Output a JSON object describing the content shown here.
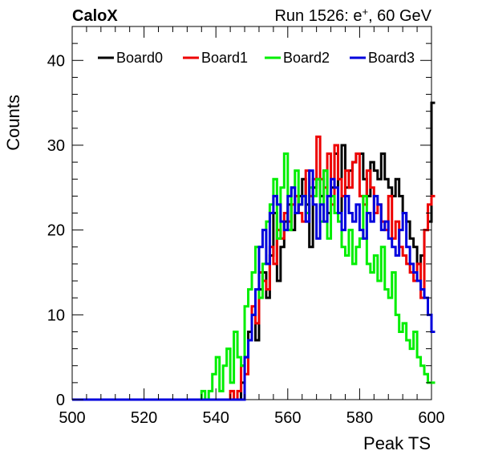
{
  "header": {
    "left": "CaloX",
    "right_prefix": "Run 1526: e",
    "right_sup": "+",
    "right_suffix": ", 60 GeV"
  },
  "colors": {
    "Board0": "#000000",
    "Board1": "#ee0000",
    "Board2": "#00ee00",
    "Board3": "#0000dd"
  },
  "chart_data": {
    "type": "histogram",
    "xlabel": "Peak TS",
    "ylabel": "Counts",
    "xlim": [
      500,
      600
    ],
    "ylim": [
      0,
      44
    ],
    "bin_edges_start": 500,
    "bin_width": 1,
    "xticks": [
      500,
      520,
      540,
      560,
      580,
      600
    ],
    "yticks": [
      0,
      10,
      20,
      30,
      40
    ],
    "legend_position": "top",
    "series": [
      {
        "name": "Board0",
        "values": [
          0,
          0,
          0,
          0,
          0,
          0,
          0,
          0,
          0,
          0,
          0,
          0,
          0,
          0,
          0,
          0,
          0,
          0,
          0,
          0,
          0,
          0,
          0,
          0,
          0,
          0,
          0,
          0,
          0,
          0,
          0,
          0,
          0,
          0,
          0,
          0,
          0,
          0,
          0,
          0,
          0,
          0,
          0,
          0,
          0,
          0,
          0,
          2,
          5,
          8,
          10,
          7,
          13,
          15,
          12,
          17,
          22,
          14,
          18,
          21,
          23,
          20,
          22,
          24,
          26,
          23,
          18,
          25,
          26,
          24,
          27,
          22,
          25,
          29,
          22,
          30,
          25,
          27,
          28,
          29,
          29,
          26,
          24,
          28,
          27,
          26,
          29,
          26,
          25,
          24,
          26,
          24,
          22,
          21,
          19,
          18,
          16,
          17,
          20,
          21,
          35
        ]
      },
      {
        "name": "Board1",
        "values": [
          0,
          0,
          0,
          0,
          0,
          0,
          0,
          0,
          0,
          0,
          0,
          0,
          0,
          0,
          0,
          0,
          0,
          0,
          0,
          0,
          0,
          0,
          0,
          0,
          0,
          0,
          0,
          0,
          0,
          0,
          0,
          0,
          0,
          0,
          0,
          0,
          0,
          0,
          0,
          0,
          0,
          0,
          0,
          0,
          1,
          0,
          1,
          4,
          3,
          7,
          11,
          9,
          15,
          14,
          13,
          18,
          16,
          20,
          19,
          22,
          21,
          23,
          24,
          22,
          21,
          27,
          24,
          26,
          31,
          26,
          25,
          29,
          23,
          30,
          26,
          24,
          27,
          25,
          28,
          29,
          24,
          23,
          27,
          25,
          22,
          23,
          21,
          20,
          24,
          19,
          21,
          18,
          17,
          16,
          15,
          14,
          16,
          12,
          20,
          23,
          24
        ]
      },
      {
        "name": "Board2",
        "values": [
          0,
          0,
          0,
          0,
          0,
          0,
          0,
          0,
          0,
          0,
          0,
          0,
          0,
          0,
          0,
          0,
          0,
          0,
          0,
          0,
          0,
          0,
          0,
          0,
          0,
          0,
          0,
          0,
          0,
          0,
          0,
          0,
          0,
          0,
          0,
          0,
          1,
          0,
          1,
          3,
          5,
          1,
          4,
          6,
          2,
          8,
          5,
          4,
          11,
          13,
          15,
          18,
          12,
          16,
          21,
          23,
          26,
          19,
          25,
          29,
          20,
          25,
          27,
          23,
          24,
          22,
          25,
          24,
          26,
          21,
          27,
          19,
          24,
          22,
          21,
          18,
          17,
          20,
          16,
          18,
          19,
          24,
          16,
          15,
          17,
          14,
          18,
          13,
          12,
          15,
          10,
          8,
          9,
          7,
          6,
          8,
          5,
          4,
          3,
          2,
          2
        ]
      },
      {
        "name": "Board3",
        "values": [
          0,
          0,
          0,
          0,
          0,
          0,
          0,
          0,
          0,
          0,
          0,
          0,
          0,
          0,
          0,
          0,
          0,
          0,
          0,
          0,
          0,
          0,
          0,
          0,
          0,
          0,
          0,
          0,
          0,
          0,
          0,
          0,
          0,
          0,
          0,
          0,
          0,
          0,
          0,
          0,
          0,
          0,
          0,
          0,
          0,
          0,
          0,
          0,
          5,
          7,
          10,
          13,
          18,
          20,
          16,
          22,
          24,
          23,
          21,
          20,
          24,
          25,
          22,
          23,
          24,
          21,
          27,
          23,
          19,
          23,
          21,
          24,
          26,
          25,
          22,
          20,
          24,
          22,
          21,
          23,
          20,
          19,
          22,
          21,
          24,
          23,
          20,
          21,
          19,
          18,
          17,
          20,
          22,
          18,
          16,
          15,
          14,
          13,
          12,
          10,
          8
        ]
      }
    ]
  }
}
